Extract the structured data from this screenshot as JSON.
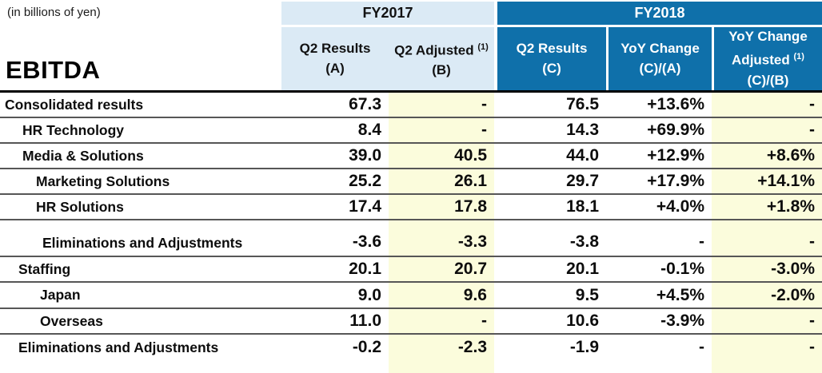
{
  "meta": {
    "unit_note": "(in billions of yen)",
    "title": "EBITDA"
  },
  "colors": {
    "fy2018_header_blue": "#0f70aa",
    "fy2017_header_blue": "#dbeaf5",
    "adjusted_column_yellow": "#fbfcdc",
    "row_separator_gray": "#565656"
  },
  "header": {
    "fy2017": {
      "label": "FY2017",
      "columns": [
        {
          "lines": [
            {
              "text": "Q2 Results"
            },
            {
              "text": "(A)"
            }
          ]
        },
        {
          "lines": [
            {
              "text": "Q2 Adjusted",
              "sup": "(1)"
            },
            {
              "text": "(B)"
            }
          ]
        }
      ]
    },
    "fy2018": {
      "label": "FY2018",
      "columns": [
        {
          "lines": [
            {
              "text": "Q2 Results"
            },
            {
              "text": "(C)"
            }
          ]
        },
        {
          "lines": [
            {
              "text": "YoY Change"
            },
            {
              "text": "(C)/(A)"
            }
          ]
        },
        {
          "lines": [
            {
              "text": "YoY Change"
            },
            {
              "text": "Adjusted",
              "sup": "(1)"
            },
            {
              "text": "(C)/(B)"
            }
          ]
        }
      ]
    }
  },
  "rows": [
    {
      "label": "Consolidated results",
      "indent": 6,
      "q2_results_a": "67.3",
      "q2_adjusted_b": "-",
      "q2_results_c": "76.5",
      "yoy_change": "+13.6%",
      "yoy_change_adjusted": "-"
    },
    {
      "label": "HR Technology",
      "indent": 28,
      "q2_results_a": "8.4",
      "q2_adjusted_b": "-",
      "q2_results_c": "14.3",
      "yoy_change": "+69.9%",
      "yoy_change_adjusted": "-"
    },
    {
      "label": "Media & Solutions",
      "indent": 28,
      "q2_results_a": "39.0",
      "q2_adjusted_b": "40.5",
      "q2_results_c": "44.0",
      "yoy_change": "+12.9%",
      "yoy_change_adjusted": "+8.6%"
    },
    {
      "label": "Marketing Solutions",
      "indent": 45,
      "q2_results_a": "25.2",
      "q2_adjusted_b": "26.1",
      "q2_results_c": "29.7",
      "yoy_change": "+17.9%",
      "yoy_change_adjusted": "+14.1%"
    },
    {
      "label": "HR Solutions",
      "indent": 45,
      "q2_results_a": "17.4",
      "q2_adjusted_b": "17.8",
      "q2_results_c": "18.1",
      "yoy_change": "+4.0%",
      "yoy_change_adjusted": "+1.8%"
    },
    {
      "label": "Eliminations and Adjustments",
      "indent": 53,
      "q2_results_a": "-3.6",
      "q2_adjusted_b": "-3.3",
      "q2_results_c": "-3.8",
      "yoy_change": "-",
      "yoy_change_adjusted": "-",
      "tall": true
    },
    {
      "label": "Staffing",
      "indent": 23,
      "q2_results_a": "20.1",
      "q2_adjusted_b": "20.7",
      "q2_results_c": "20.1",
      "yoy_change": "-0.1%",
      "yoy_change_adjusted": "-3.0%"
    },
    {
      "label": "Japan",
      "indent": 50,
      "q2_results_a": "9.0",
      "q2_adjusted_b": "9.6",
      "q2_results_c": "9.5",
      "yoy_change": "+4.5%",
      "yoy_change_adjusted": "-2.0%"
    },
    {
      "label": "Overseas",
      "indent": 50,
      "q2_results_a": "11.0",
      "q2_adjusted_b": "-",
      "q2_results_c": "10.6",
      "yoy_change": "-3.9%",
      "yoy_change_adjusted": "-"
    },
    {
      "label": "Eliminations and Adjustments",
      "indent": 23,
      "q2_results_a": "-0.2",
      "q2_adjusted_b": "-2.3",
      "q2_results_c": "-1.9",
      "yoy_change": "-",
      "yoy_change_adjusted": "-",
      "last": true
    }
  ]
}
